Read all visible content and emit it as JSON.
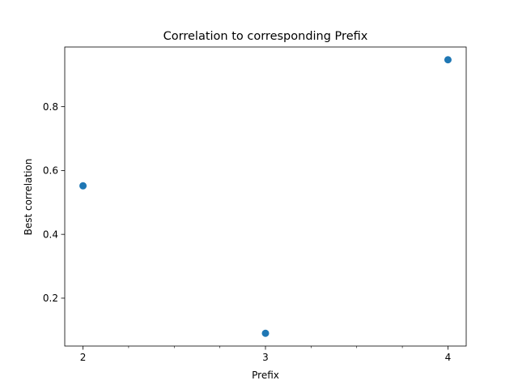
{
  "chart_data": {
    "type": "scatter",
    "title": "Correlation to corresponding Prefix",
    "xlabel": "Prefix",
    "ylabel": "Best correlation",
    "x": [
      2,
      3,
      4
    ],
    "y": [
      0.552,
      0.09,
      0.947
    ],
    "xlim": [
      1.9,
      4.1
    ],
    "ylim": [
      0.05,
      0.987
    ],
    "xticks": [
      2,
      3,
      4
    ],
    "xtick_labels": [
      "2",
      "3",
      "4"
    ],
    "xminor_ticks": [
      2.25,
      2.5,
      2.75,
      3.25,
      3.5,
      3.75
    ],
    "yticks": [
      0.2,
      0.4,
      0.6,
      0.8
    ],
    "ytick_labels": [
      "0.2",
      "0.4",
      "0.6",
      "0.8"
    ],
    "grid": false,
    "color": "#1f77b4"
  }
}
